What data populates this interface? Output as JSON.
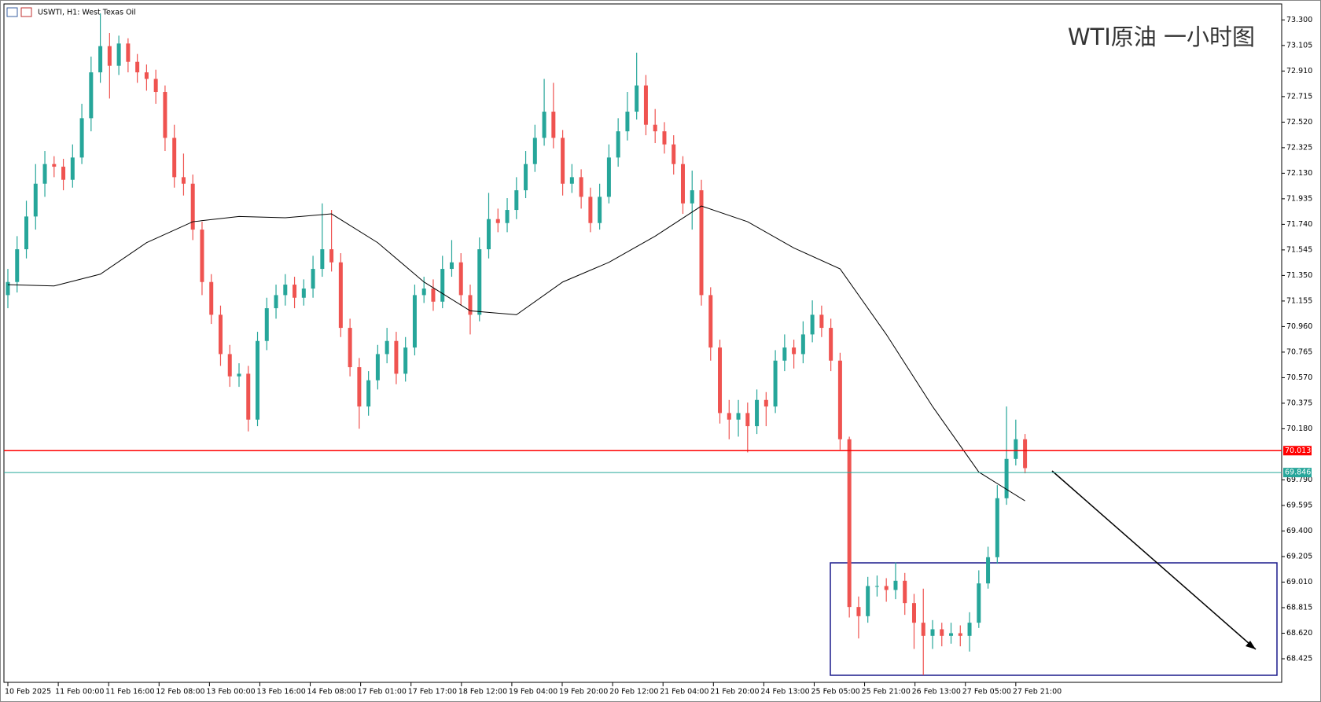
{
  "chart_data": {
    "type": "candlestick",
    "title": "USWTI, H1:  West Texas Oil",
    "annotation": "WTI原油 一小时图",
    "bull_color": "#26a69a",
    "bear_color": "#ef5350",
    "ylim": [
      68.245,
      73.422
    ],
    "yticks": [
      {
        "value": 73.3,
        "label": "73.300"
      },
      {
        "value": 73.105,
        "label": "73.105"
      },
      {
        "value": 72.91,
        "label": "72.910"
      },
      {
        "value": 72.715,
        "label": "72.715"
      },
      {
        "value": 72.52,
        "label": "72.520"
      },
      {
        "value": 72.325,
        "label": "72.325"
      },
      {
        "value": 72.13,
        "label": "72.130"
      },
      {
        "value": 71.935,
        "label": "71.935"
      },
      {
        "value": 71.74,
        "label": "71.740"
      },
      {
        "value": 71.545,
        "label": "71.545"
      },
      {
        "value": 71.35,
        "label": "71.350"
      },
      {
        "value": 71.155,
        "label": "71.155"
      },
      {
        "value": 70.96,
        "label": "70.960"
      },
      {
        "value": 70.765,
        "label": "70.765"
      },
      {
        "value": 70.57,
        "label": "70.570"
      },
      {
        "value": 70.375,
        "label": "70.375"
      },
      {
        "value": 70.18,
        "label": "70.180"
      },
      {
        "value": 69.79,
        "label": "69.790"
      },
      {
        "value": 69.595,
        "label": "69.595"
      },
      {
        "value": 69.4,
        "label": "69.400"
      },
      {
        "value": 69.205,
        "label": "69.205"
      },
      {
        "value": 69.01,
        "label": "69.010"
      },
      {
        "value": 68.815,
        "label": "68.815"
      },
      {
        "value": 68.62,
        "label": "68.620"
      },
      {
        "value": 68.425,
        "label": "68.425"
      }
    ],
    "xticks": [
      {
        "value": 0,
        "label": "10 Feb 2025"
      },
      {
        "value": 5.45,
        "label": "11 Feb 00:00"
      },
      {
        "value": 10.9,
        "label": "11 Feb 16:00"
      },
      {
        "value": 16.35,
        "label": "12 Feb 08:00"
      },
      {
        "value": 21.8,
        "label": "13 Feb 00:00"
      },
      {
        "value": 27.25,
        "label": "13 Feb 16:00"
      },
      {
        "value": 32.7,
        "label": "14 Feb 08:00"
      },
      {
        "value": 38.15,
        "label": "17 Feb 01:00"
      },
      {
        "value": 43.6,
        "label": "17 Feb 17:00"
      },
      {
        "value": 49.05,
        "label": "18 Feb 12:00"
      },
      {
        "value": 54.5,
        "label": "19 Feb 04:00"
      },
      {
        "value": 59.95,
        "label": "19 Feb 20:00"
      },
      {
        "value": 65.4,
        "label": "20 Feb 12:00"
      },
      {
        "value": 70.85,
        "label": "21 Feb 04:00"
      },
      {
        "value": 76.3,
        "label": "21 Feb 20:00"
      },
      {
        "value": 81.75,
        "label": "24 Feb 13:00"
      },
      {
        "value": 87.2,
        "label": "25 Feb 05:00"
      },
      {
        "value": 92.65,
        "label": "25 Feb 21:00"
      },
      {
        "value": 98.1,
        "label": "26 Feb 13:00"
      },
      {
        "value": 103.55,
        "label": "27 Feb 05:00"
      },
      {
        "value": 109,
        "label": "27 Feb 21:00"
      }
    ],
    "hlines": [
      {
        "value": 70.013,
        "label": "70.013",
        "color": "#ff0000"
      },
      {
        "value": 69.846,
        "label": "69.846",
        "color": "#26a69a"
      }
    ],
    "ma": {
      "color": "#000000",
      "x": [
        0,
        5,
        10,
        15,
        20,
        25,
        30,
        35,
        40,
        45,
        50,
        55,
        60,
        65,
        70,
        75,
        80,
        85,
        90,
        95,
        100,
        105,
        110
      ],
      "values": [
        71.28,
        71.27,
        71.36,
        71.6,
        71.76,
        71.8,
        71.79,
        71.82,
        71.6,
        71.3,
        71.08,
        71.05,
        71.3,
        71.45,
        71.65,
        71.88,
        71.76,
        71.56,
        71.4,
        70.9,
        70.35,
        69.85,
        69.63
      ]
    },
    "candles": [
      [
        71.2,
        71.4,
        71.1,
        71.3
      ],
      [
        71.3,
        71.65,
        71.22,
        71.55
      ],
      [
        71.55,
        71.92,
        71.48,
        71.8
      ],
      [
        71.8,
        72.2,
        71.7,
        72.05
      ],
      [
        72.05,
        72.3,
        71.95,
        72.2
      ],
      [
        72.2,
        72.26,
        72.1,
        72.18
      ],
      [
        72.18,
        72.24,
        72.0,
        72.08
      ],
      [
        72.08,
        72.35,
        72.02,
        72.25
      ],
      [
        72.25,
        72.66,
        72.2,
        72.55
      ],
      [
        72.55,
        73.02,
        72.45,
        72.9
      ],
      [
        72.9,
        73.35,
        72.82,
        73.1
      ],
      [
        73.1,
        73.2,
        72.7,
        72.95
      ],
      [
        72.95,
        73.18,
        72.88,
        73.12
      ],
      [
        73.12,
        73.16,
        72.9,
        72.98
      ],
      [
        72.98,
        73.04,
        72.82,
        72.9
      ],
      [
        72.9,
        72.96,
        72.76,
        72.85
      ],
      [
        72.85,
        72.92,
        72.66,
        72.75
      ],
      [
        72.75,
        72.8,
        72.3,
        72.4
      ],
      [
        72.4,
        72.5,
        72.02,
        72.1
      ],
      [
        72.1,
        72.28,
        71.96,
        72.05
      ],
      [
        72.05,
        72.12,
        71.62,
        71.7
      ],
      [
        71.7,
        71.76,
        71.2,
        71.3
      ],
      [
        71.3,
        71.36,
        70.98,
        71.05
      ],
      [
        71.05,
        71.12,
        70.66,
        70.75
      ],
      [
        70.75,
        70.82,
        70.5,
        70.58
      ],
      [
        70.58,
        70.68,
        70.5,
        70.6
      ],
      [
        70.6,
        70.66,
        70.16,
        70.25
      ],
      [
        70.25,
        70.92,
        70.2,
        70.85
      ],
      [
        70.85,
        71.18,
        70.78,
        71.1
      ],
      [
        71.1,
        71.28,
        71.02,
        71.2
      ],
      [
        71.2,
        71.36,
        71.12,
        71.28
      ],
      [
        71.28,
        71.34,
        71.1,
        71.18
      ],
      [
        71.18,
        71.32,
        71.12,
        71.25
      ],
      [
        71.25,
        71.5,
        71.18,
        71.4
      ],
      [
        71.4,
        71.9,
        71.34,
        71.55
      ],
      [
        71.55,
        71.85,
        71.38,
        71.45
      ],
      [
        71.45,
        71.52,
        70.88,
        70.95
      ],
      [
        70.95,
        71.02,
        70.58,
        70.65
      ],
      [
        70.65,
        70.72,
        70.18,
        70.35
      ],
      [
        70.35,
        70.62,
        70.28,
        70.55
      ],
      [
        70.55,
        70.82,
        70.48,
        70.75
      ],
      [
        70.75,
        70.95,
        70.68,
        70.85
      ],
      [
        70.85,
        70.92,
        70.52,
        70.6
      ],
      [
        70.6,
        70.88,
        70.54,
        70.8
      ],
      [
        70.8,
        71.28,
        70.74,
        71.2
      ],
      [
        71.2,
        71.34,
        71.14,
        71.25
      ],
      [
        71.25,
        71.32,
        71.08,
        71.15
      ],
      [
        71.15,
        71.5,
        71.1,
        71.4
      ],
      [
        71.4,
        71.62,
        71.34,
        71.45
      ],
      [
        71.45,
        71.52,
        71.12,
        71.2
      ],
      [
        71.2,
        71.28,
        70.9,
        71.05
      ],
      [
        71.05,
        71.64,
        71.0,
        71.55
      ],
      [
        71.55,
        71.98,
        71.48,
        71.78
      ],
      [
        71.78,
        71.86,
        71.68,
        71.75
      ],
      [
        71.75,
        71.94,
        71.68,
        71.85
      ],
      [
        71.85,
        72.1,
        71.78,
        72.0
      ],
      [
        72.0,
        72.3,
        71.94,
        72.2
      ],
      [
        72.2,
        72.5,
        72.14,
        72.4
      ],
      [
        72.4,
        72.85,
        72.34,
        72.6
      ],
      [
        72.6,
        72.82,
        72.32,
        72.4
      ],
      [
        72.4,
        72.46,
        71.96,
        72.05
      ],
      [
        72.05,
        72.2,
        71.98,
        72.1
      ],
      [
        72.1,
        72.16,
        71.86,
        71.95
      ],
      [
        71.95,
        72.02,
        71.68,
        71.75
      ],
      [
        71.75,
        72.05,
        71.7,
        71.95
      ],
      [
        71.95,
        72.35,
        71.9,
        72.25
      ],
      [
        72.25,
        72.55,
        72.18,
        72.45
      ],
      [
        72.45,
        72.75,
        72.38,
        72.6
      ],
      [
        72.6,
        73.05,
        72.54,
        72.8
      ],
      [
        72.8,
        72.88,
        72.42,
        72.5
      ],
      [
        72.5,
        72.62,
        72.36,
        72.45
      ],
      [
        72.45,
        72.52,
        72.28,
        72.35
      ],
      [
        72.35,
        72.42,
        72.12,
        72.2
      ],
      [
        72.2,
        72.26,
        71.82,
        71.9
      ],
      [
        71.9,
        72.15,
        71.7,
        72.0
      ],
      [
        72.0,
        72.08,
        71.12,
        71.2
      ],
      [
        71.2,
        71.26,
        70.7,
        70.8
      ],
      [
        70.8,
        70.86,
        70.22,
        70.3
      ],
      [
        70.3,
        70.4,
        70.1,
        70.25
      ],
      [
        70.25,
        70.4,
        70.12,
        70.3
      ],
      [
        70.3,
        70.38,
        70.0,
        70.2
      ],
      [
        70.2,
        70.48,
        70.14,
        70.4
      ],
      [
        70.4,
        70.46,
        70.2,
        70.35
      ],
      [
        70.35,
        70.78,
        70.3,
        70.7
      ],
      [
        70.7,
        70.9,
        70.62,
        70.8
      ],
      [
        70.8,
        70.86,
        70.64,
        70.75
      ],
      [
        70.75,
        71.0,
        70.68,
        70.9
      ],
      [
        70.9,
        71.16,
        70.84,
        71.05
      ],
      [
        71.05,
        71.12,
        70.88,
        70.95
      ],
      [
        70.95,
        71.02,
        70.62,
        70.7
      ],
      [
        70.7,
        70.76,
        70.02,
        70.1
      ],
      [
        70.1,
        70.12,
        68.74,
        68.82
      ],
      [
        68.82,
        68.9,
        68.58,
        68.75
      ],
      [
        68.75,
        69.05,
        68.7,
        68.98
      ],
      [
        68.98,
        69.06,
        68.9,
        68.98
      ],
      [
        68.98,
        69.04,
        68.86,
        68.95
      ],
      [
        68.95,
        69.16,
        68.88,
        69.02
      ],
      [
        69.02,
        69.08,
        68.76,
        68.85
      ],
      [
        68.85,
        68.92,
        68.5,
        68.7
      ],
      [
        68.7,
        68.96,
        68.3,
        68.6
      ],
      [
        68.6,
        68.72,
        68.5,
        68.65
      ],
      [
        68.65,
        68.7,
        68.52,
        68.6
      ],
      [
        68.6,
        68.7,
        68.54,
        68.62
      ],
      [
        68.62,
        68.68,
        68.52,
        68.6
      ],
      [
        68.6,
        68.78,
        68.48,
        68.7
      ],
      [
        68.7,
        69.1,
        68.66,
        69.0
      ],
      [
        69.0,
        69.28,
        68.96,
        69.2
      ],
      [
        69.2,
        69.75,
        69.15,
        69.65
      ],
      [
        69.65,
        70.35,
        69.6,
        69.95
      ],
      [
        69.95,
        70.25,
        69.9,
        70.1
      ],
      [
        70.1,
        70.14,
        69.84,
        69.88
      ]
    ]
  }
}
